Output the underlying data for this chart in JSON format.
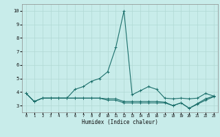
{
  "title": "",
  "xlabel": "Humidex (Indice chaleur)",
  "bg_color": "#c8ecea",
  "line_color": "#1a6e6a",
  "grid_color": "#b0d8d4",
  "xlim": [
    -0.5,
    23.5
  ],
  "ylim": [
    2.5,
    10.5
  ],
  "yticks": [
    3,
    4,
    5,
    6,
    7,
    8,
    9,
    10
  ],
  "xticks": [
    0,
    1,
    2,
    3,
    4,
    5,
    6,
    7,
    8,
    9,
    10,
    11,
    12,
    13,
    14,
    15,
    16,
    17,
    18,
    19,
    20,
    21,
    22,
    23
  ],
  "series": [
    {
      "x": [
        0,
        1,
        2,
        3,
        4,
        5,
        6,
        7,
        8,
        9,
        10,
        11,
        12,
        13,
        14,
        15,
        16,
        17,
        18,
        19,
        20,
        21,
        22,
        23
      ],
      "y": [
        3.9,
        3.3,
        3.55,
        3.55,
        3.55,
        3.55,
        4.2,
        4.4,
        4.8,
        5.0,
        5.5,
        7.3,
        10.0,
        3.8,
        4.1,
        4.4,
        4.2,
        3.55,
        3.5,
        3.55,
        3.5,
        3.55,
        3.9,
        3.7
      ]
    },
    {
      "x": [
        0,
        1,
        2,
        3,
        4,
        5,
        6,
        7,
        8,
        9,
        10,
        11,
        12,
        13,
        14,
        15,
        16,
        17,
        18,
        19,
        20,
        21,
        22,
        23
      ],
      "y": [
        3.9,
        3.3,
        3.55,
        3.55,
        3.55,
        3.55,
        3.55,
        3.55,
        3.55,
        3.55,
        3.5,
        3.5,
        3.3,
        3.3,
        3.3,
        3.3,
        3.3,
        3.25,
        3.0,
        3.2,
        2.8,
        3.15,
        3.5,
        3.7
      ]
    },
    {
      "x": [
        0,
        1,
        2,
        3,
        4,
        5,
        6,
        7,
        8,
        9,
        10,
        11,
        12,
        13,
        14,
        15,
        16,
        17,
        18,
        19,
        20,
        21,
        22,
        23
      ],
      "y": [
        3.9,
        3.3,
        3.55,
        3.55,
        3.55,
        3.55,
        3.55,
        3.55,
        3.55,
        3.55,
        3.4,
        3.4,
        3.2,
        3.2,
        3.2,
        3.2,
        3.2,
        3.2,
        3.0,
        3.2,
        2.8,
        3.1,
        3.4,
        3.65
      ]
    }
  ]
}
